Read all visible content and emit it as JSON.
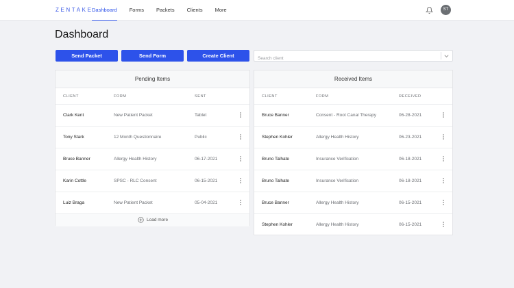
{
  "app": {
    "logo": "ZENTAKE"
  },
  "nav": [
    "Dashboard",
    "Forms",
    "Packets",
    "Clients",
    "More"
  ],
  "header": {
    "avatar_initials": "ST"
  },
  "page": {
    "title": "Dashboard"
  },
  "actions": {
    "send_packet": "Send Packet",
    "send_form": "Send Form",
    "create_client": "Create Client"
  },
  "search": {
    "placeholder": "Search client",
    "value": ""
  },
  "pending": {
    "title": "Pending Items",
    "columns": [
      "CLIENT",
      "FORM",
      "SENT"
    ],
    "rows": [
      [
        "Clark Kent",
        "New Patient Packet",
        "Tablet"
      ],
      [
        "Tony Stark",
        "12 Month Questionnaire",
        "Public"
      ],
      [
        "Bruce Banner",
        "Allergy Health History",
        "06-17-2021"
      ],
      [
        "Karin Cottle",
        "SPSC - RLC Consent",
        "06-15-2021"
      ],
      [
        "Luiz Braga",
        "New Patient Packet",
        "05-04-2021"
      ]
    ],
    "load_more": "Load more"
  },
  "received": {
    "title": "Received Items",
    "columns": [
      "CLIENT",
      "FORM",
      "RECEIVED"
    ],
    "rows": [
      [
        "Bruce Banner",
        "Consent - Root Canal Therapy",
        "06-28-2021"
      ],
      [
        "Stephen Kohler",
        "Allergy Health History",
        "06-23-2021"
      ],
      [
        "Bruno Talhate",
        "Insurance Verification",
        "06-18-2021"
      ],
      [
        "Bruno Talhate",
        "Insurance Verification",
        "06-18-2021"
      ],
      [
        "Bruce Banner",
        "Allergy Health History",
        "06-15-2021"
      ],
      [
        "Stephen Kohler",
        "Allergy Health History",
        "06-15-2021"
      ]
    ]
  },
  "colors": {
    "accent": "#2d52ea",
    "background": "#f1f2f5"
  }
}
